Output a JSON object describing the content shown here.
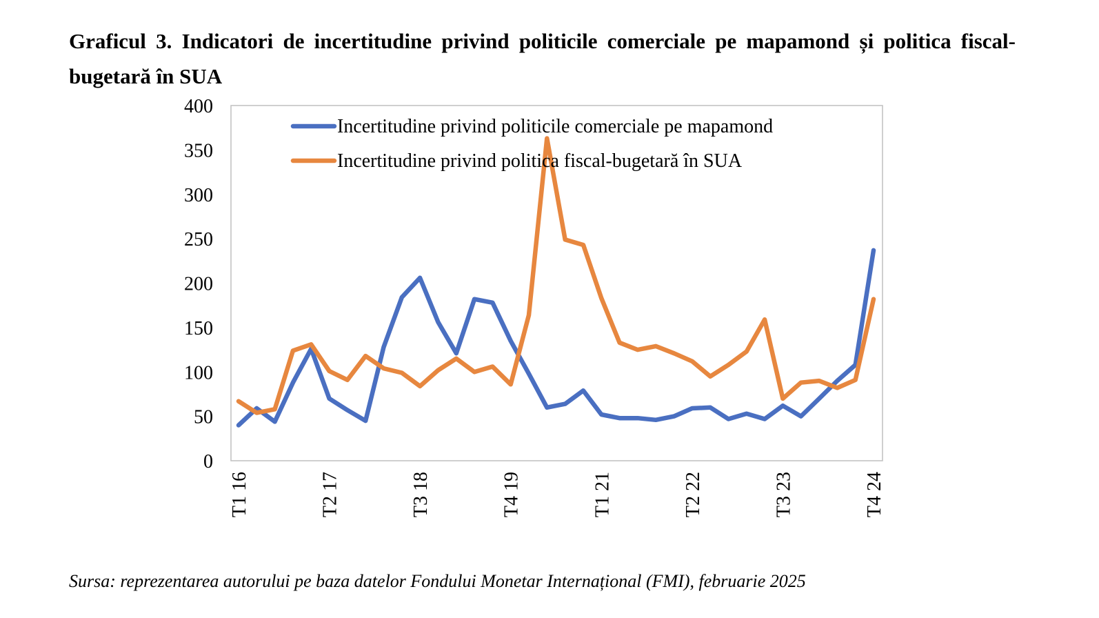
{
  "caption": {
    "title": "Graficul 3. Indicatori de incertitudine privind politicile comerciale pe mapamond și politica fiscal-bugetară în SUA",
    "source": "Sursa: reprezentarea autorului pe baza datelor Fondului Monetar Internațional (FMI), februarie 2025"
  },
  "chart_data": {
    "type": "line",
    "title": "",
    "xlabel": "",
    "ylabel": "",
    "ylim": [
      0,
      400
    ],
    "yticks": [
      0,
      50,
      100,
      150,
      200,
      250,
      300,
      350,
      400
    ],
    "x": [
      "T1 16",
      "T2 16",
      "T3 16",
      "T4 16",
      "T1 17",
      "T2 17",
      "T3 17",
      "T4 17",
      "T1 18",
      "T2 18",
      "T3 18",
      "T4 18",
      "T1 19",
      "T2 19",
      "T3 19",
      "T4 19",
      "T1 20",
      "T2 20",
      "T3 20",
      "T4 20",
      "T1 21",
      "T2 21",
      "T3 21",
      "T4 21",
      "T1 22",
      "T2 22",
      "T3 22",
      "T4 22",
      "T1 23",
      "T2 23",
      "T3 23",
      "T4 23",
      "T1 24",
      "T2 24",
      "T3 24",
      "T4 24"
    ],
    "xtick_labels": [
      {
        "index": 0,
        "label": "T1 16"
      },
      {
        "index": 5,
        "label": "T2 17"
      },
      {
        "index": 10,
        "label": "T3 18"
      },
      {
        "index": 15,
        "label": "T4 19"
      },
      {
        "index": 20,
        "label": "T1 21"
      },
      {
        "index": 25,
        "label": "T2 22"
      },
      {
        "index": 30,
        "label": "T3 23"
      },
      {
        "index": 35,
        "label": "T4 24"
      }
    ],
    "legend_position": "top",
    "grid": false,
    "series": [
      {
        "name": "Incertitudine privind politicile comerciale pe mapamond",
        "color": "#4A6FC1",
        "values": [
          40,
          59,
          44,
          88,
          126,
          70,
          57,
          45,
          128,
          184,
          206,
          156,
          121,
          182,
          178,
          135,
          98,
          60,
          64,
          79,
          52,
          48,
          48,
          46,
          50,
          59,
          60,
          47,
          53,
          47,
          62,
          50,
          70,
          90,
          108,
          237
        ]
      },
      {
        "name": "Incertitudine privind politica fiscal-bugetară în SUA",
        "color": "#E7873F",
        "values": [
          67,
          54,
          58,
          124,
          131,
          101,
          91,
          118,
          104,
          99,
          84,
          102,
          115,
          100,
          106,
          86,
          164,
          363,
          249,
          243,
          183,
          133,
          125,
          129,
          121,
          112,
          95,
          108,
          123,
          159,
          70,
          88,
          90,
          82,
          91,
          182
        ]
      }
    ]
  }
}
